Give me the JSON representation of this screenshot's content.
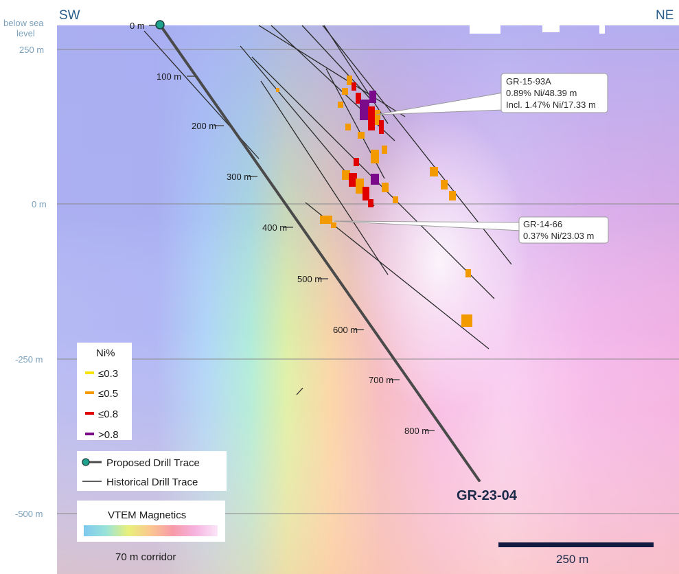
{
  "section": {
    "left_direction": "SW",
    "right_direction": "NE",
    "axis_title": [
      "below sea",
      "level"
    ],
    "elevation_ticks": [
      "250 m",
      "0 m",
      "-250 m",
      "-500 m"
    ],
    "corridor_note": "70 m corridor",
    "scale_bar_label": "250 m"
  },
  "proposed_hole": {
    "name": "GR-23-04",
    "collar_label": "0 m",
    "depth_marks": [
      "100 m",
      "200 m",
      "300 m",
      "400 m",
      "500 m",
      "600 m",
      "700 m",
      "800 m"
    ]
  },
  "callouts": [
    {
      "lines": [
        "GR-15-93A",
        "0.89% Ni/48.39 m",
        "Incl. 1.47% Ni/17.33 m"
      ]
    },
    {
      "lines": [
        "GR-14-66",
        "0.37% Ni/23.03 m"
      ]
    }
  ],
  "legend": {
    "title": "Ni%",
    "classes": [
      {
        "label": "≤0.3",
        "color": "#f5e300"
      },
      {
        "label": "≤0.5",
        "color": "#f39a00"
      },
      {
        "label": "≤0.8",
        "color": "#e00000"
      },
      {
        "label": ">0.8",
        "color": "#7a0a8a"
      }
    ],
    "traces": [
      {
        "label": "Proposed Drill Trace",
        "icon": "collar-circle-line-icon"
      },
      {
        "label": "Historical Drill Trace",
        "icon": "thin-line-icon"
      }
    ],
    "magnetics_title": "VTEM Magnetics",
    "magnetics_ramp": [
      "#7ec8ef",
      "#9ae3d9",
      "#e8f07a",
      "#fbc791",
      "#f79aa9",
      "#f6b3e0",
      "#fbe6f8"
    ]
  },
  "colors": {
    "proposed_trace": "#4a4a4a",
    "historical_trace": "#2b2b2b",
    "collar_fill": "#1fa28e",
    "scale_bar": "#121a40",
    "grid_line": "#8a8a8a"
  }
}
